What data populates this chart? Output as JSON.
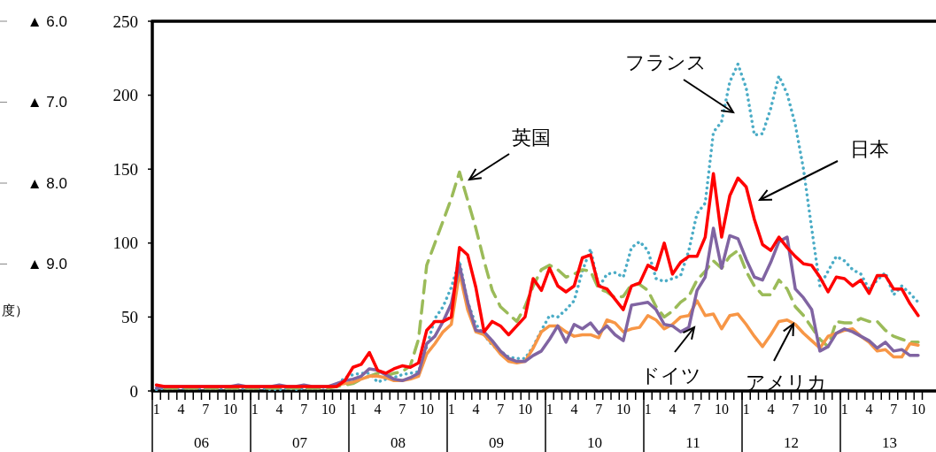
{
  "chart_data": {
    "type": "line",
    "categories": [
      "1",
      null,
      null,
      "4",
      null,
      null,
      "7",
      null,
      null,
      "10",
      null,
      null,
      "1",
      null,
      null,
      "4",
      null,
      null,
      "7",
      null,
      null,
      "10",
      null,
      null,
      "1",
      null,
      null,
      "4",
      null,
      null,
      "7",
      null,
      null,
      "10",
      null,
      null,
      "1",
      null,
      null,
      "4",
      null,
      null,
      "7",
      null,
      null,
      "10",
      null,
      null,
      "1",
      null,
      null,
      "4",
      null,
      null,
      "7",
      null,
      null,
      "10",
      null,
      null,
      "1",
      null,
      null,
      "4",
      null,
      null,
      "7",
      null,
      null,
      "10",
      null,
      null,
      "1",
      null,
      null,
      "4",
      null,
      null,
      "7",
      null,
      null,
      "10",
      null,
      null,
      "1",
      null,
      null,
      "4",
      null,
      null,
      "7",
      null,
      null,
      "10"
    ],
    "series": [
      {
        "name": "フランス",
        "color": "#4bacc6",
        "line_style": "dotted",
        "values": [
          1,
          2,
          2,
          2,
          2,
          2,
          2,
          2,
          2,
          2,
          2,
          2,
          2,
          2,
          1,
          1,
          2,
          1,
          2,
          2,
          2,
          3,
          4,
          9,
          11,
          12,
          12,
          6,
          8,
          9,
          11,
          12,
          13,
          30,
          49,
          57,
          70,
          88,
          60,
          45,
          38,
          31,
          27,
          23,
          22,
          22,
          30,
          41,
          51,
          50,
          55,
          61,
          81,
          96,
          70,
          79,
          80,
          77,
          97,
          101,
          95,
          76,
          74,
          76,
          78,
          95,
          120,
          127,
          175,
          182,
          209,
          221,
          205,
          173,
          174,
          191,
          213,
          201,
          180,
          150,
          110,
          71,
          81,
          91,
          88,
          82,
          79,
          69,
          75,
          80,
          65,
          71,
          66,
          60
        ]
      },
      {
        "name": "英国",
        "color": "#9bbb59",
        "line_style": "dashed",
        "values": [
          null,
          2,
          2,
          2,
          2,
          2,
          2,
          2,
          2,
          2,
          2,
          2,
          2,
          2,
          2,
          2,
          2,
          2,
          2,
          2,
          2,
          2,
          3,
          4,
          5,
          8,
          10,
          12,
          10,
          12,
          13,
          17,
          35,
          85,
          100,
          115,
          130,
          148,
          129,
          110,
          88,
          68,
          57,
          52,
          47,
          57,
          71,
          82,
          85,
          82,
          77,
          79,
          82,
          81,
          69,
          67,
          63,
          64,
          72,
          72,
          68,
          57,
          50,
          54,
          60,
          64,
          75,
          81,
          88,
          83,
          91,
          95,
          81,
          71,
          65,
          65,
          75,
          69,
          57,
          51,
          43,
          35,
          30,
          47,
          46,
          46,
          49,
          47,
          47,
          41,
          37,
          35,
          33,
          33
        ]
      },
      {
        "name": "アメリカ",
        "color": "#f79646",
        "line_style": "solid",
        "values": [
          null,
          null,
          null,
          null,
          null,
          null,
          null,
          null,
          null,
          null,
          null,
          null,
          null,
          null,
          null,
          null,
          null,
          null,
          null,
          null,
          null,
          3,
          4,
          5,
          6,
          8,
          10,
          10,
          9,
          7,
          7,
          8,
          10,
          25,
          32,
          40,
          45,
          80,
          55,
          40,
          38,
          32,
          25,
          20,
          19,
          20,
          29,
          40,
          44,
          44,
          40,
          37,
          38,
          38,
          36,
          48,
          46,
          40,
          42,
          43,
          51,
          48,
          42,
          45,
          50,
          51,
          61,
          51,
          52,
          42,
          51,
          52,
          45,
          37,
          30,
          38,
          47,
          48,
          45,
          39,
          34,
          29,
          37,
          39,
          41,
          42,
          37,
          33,
          27,
          28,
          23,
          23,
          32,
          31
        ]
      },
      {
        "name": "ドイツ",
        "color": "#8064a2",
        "line_style": "solid",
        "values": [
          2,
          3,
          3,
          3,
          3,
          3,
          3,
          3,
          3,
          3,
          4,
          3,
          3,
          3,
          3,
          4,
          3,
          3,
          4,
          3,
          3,
          3,
          5,
          7,
          8,
          10,
          15,
          14,
          11,
          8,
          7,
          9,
          12,
          32,
          37,
          47,
          59,
          85,
          60,
          41,
          40,
          34,
          27,
          22,
          20,
          20,
          24,
          27,
          35,
          44,
          33,
          45,
          42,
          46,
          39,
          44,
          38,
          34,
          58,
          59,
          60,
          55,
          45,
          44,
          40,
          43,
          68,
          77,
          110,
          83,
          105,
          103,
          89,
          77,
          75,
          87,
          101,
          104,
          69,
          63,
          55,
          27,
          30,
          39,
          42,
          40,
          37,
          34,
          29,
          33,
          27,
          28,
          24,
          24
        ]
      },
      {
        "name": "日本",
        "color": "#ff0000",
        "line_style": "solid",
        "values": [
          4,
          3,
          3,
          3,
          3,
          3,
          3,
          3,
          3,
          3,
          3,
          3,
          3,
          3,
          3,
          3,
          3,
          3,
          3,
          3,
          3,
          3,
          3,
          7,
          16,
          18,
          26,
          14,
          12,
          15,
          17,
          16,
          19,
          41,
          47,
          47,
          50,
          97,
          92,
          70,
          40,
          47,
          44,
          38,
          44,
          50,
          76,
          68,
          83,
          71,
          67,
          71,
          90,
          92,
          71,
          69,
          62,
          55,
          71,
          73,
          85,
          82,
          100,
          79,
          87,
          91,
          91,
          104,
          147,
          104,
          132,
          144,
          138,
          116,
          99,
          95,
          104,
          97,
          91,
          86,
          85,
          77,
          67,
          77,
          76,
          71,
          75,
          66,
          78,
          78,
          69,
          69,
          59,
          51
        ]
      }
    ],
    "ylim": [
      0,
      250
    ],
    "yticks": [
      0,
      50,
      100,
      150,
      200,
      250
    ],
    "annotations": [
      "06",
      "07",
      "08",
      "09",
      "10",
      "11",
      "12",
      "13",
      "▲ 6.0",
      "▲ 7.0",
      "▲ 8.0",
      "▲ 9.0",
      "度）"
    ],
    "grid": false,
    "legend": false,
    "marker": "none"
  }
}
